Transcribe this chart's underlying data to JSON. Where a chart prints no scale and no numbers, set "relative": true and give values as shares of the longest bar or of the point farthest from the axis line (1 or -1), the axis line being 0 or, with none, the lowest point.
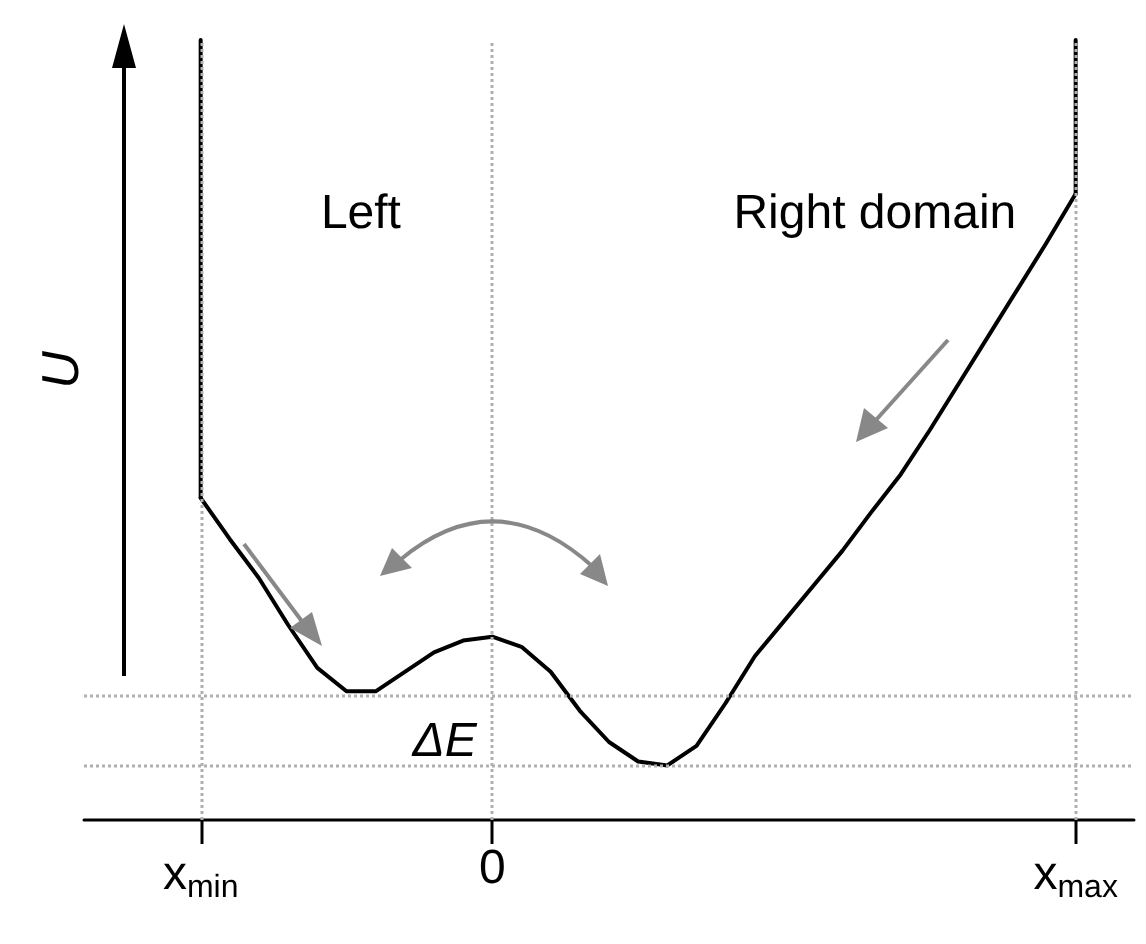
{
  "chart_data": {
    "type": "line",
    "relative": true,
    "ylabel": "U",
    "categories": [
      null,
      null,
      null,
      null,
      "x$_{min}$",
      null,
      null,
      null,
      null,
      null,
      null,
      null,
      null,
      null,
      "0",
      null,
      null,
      null,
      null,
      null,
      null,
      null,
      null,
      null,
      null,
      null,
      null,
      null,
      null,
      null,
      null,
      null,
      null,
      null,
      "x$_{max}$",
      null,
      null
    ],
    "series": [
      {
        "color": "#000000",
        "values": [
          null,
          null,
          null,
          null,
          0.413,
          0.36,
          0.31,
          0.25,
          0.195,
          0.165,
          0.165,
          0.19,
          0.215,
          0.23,
          0.235,
          0.222,
          0.19,
          0.14,
          0.1,
          0.075,
          0.07,
          0.095,
          0.15,
          0.21,
          0.255,
          0.3,
          0.345,
          0.395,
          0.443,
          0.5,
          0.56,
          0.62,
          0.68,
          0.74,
          0.803,
          null,
          null
        ]
      },
      {
        "color": "#000000",
        "x": [
          "x$_{min}$",
          "x$_{min}$"
        ],
        "values": [
          0.413,
          1
        ]
      },
      {
        "color": "#000000",
        "x": [
          "x$_{max}$",
          "x$_{max}$"
        ],
        "values": [
          0.803,
          1
        ]
      }
    ],
    "ref_lines": [
      {
        "axis": "x",
        "value": "x$_{min}$",
        "line_style": "dotted",
        "color": "#b0b0b0"
      },
      {
        "axis": "x",
        "value": "0",
        "line_style": "dotted",
        "color": "#b0b0b0"
      },
      {
        "axis": "x",
        "value": "x$_{max}$",
        "line_style": "dotted",
        "color": "#b0b0b0"
      },
      {
        "axis": "y",
        "value": 0.162,
        "line_style": "dotted",
        "color": "#b0b0b0"
      },
      {
        "axis": "y",
        "value": 0.068,
        "line_style": "dotted",
        "color": "#b0b0b0"
      }
    ],
    "annotations": [
      "Left",
      "Right domain",
      "ΔE"
    ],
    "line_style": "solid"
  }
}
